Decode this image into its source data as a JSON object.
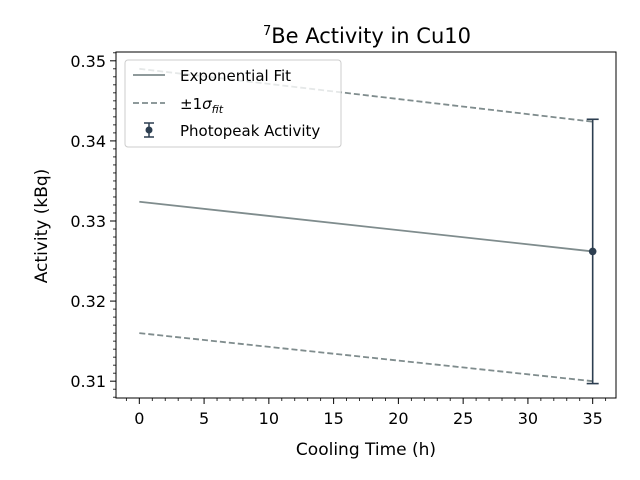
{
  "chart_data": {
    "type": "line",
    "title": "Be Activity in Cu10",
    "title_superscript": "7",
    "xlabel": "Cooling Time (h)",
    "ylabel": "Activity (kBq)",
    "xlim": [
      -1.8,
      36.8
    ],
    "ylim": [
      0.3079,
      0.3511
    ],
    "xticks": [
      0,
      5,
      10,
      15,
      20,
      25,
      30,
      35
    ],
    "yticks": [
      0.31,
      0.32,
      0.33,
      0.34,
      0.35
    ],
    "x_tick_labels": [
      "0",
      "5",
      "10",
      "15",
      "20",
      "25",
      "30",
      "35"
    ],
    "y_tick_labels": [
      "0.31",
      "0.32",
      "0.33",
      "0.34",
      "0.35"
    ],
    "grid": false,
    "legend_position": "top-left",
    "legend": {
      "fit_label": "Exponential Fit",
      "sigma_prefix": "±1",
      "sigma_symbol": "σ",
      "sigma_subscript": "fit",
      "data_label": "Photopeak Activity"
    },
    "series": [
      {
        "name": "Exponential Fit",
        "style": "solid",
        "color": "#7f8c8d",
        "x": [
          0,
          35
        ],
        "y": [
          0.3324,
          0.3262
        ]
      },
      {
        "name": "±1σfit",
        "role": "upper",
        "style": "dashed",
        "color": "#7f8c8d",
        "x": [
          0,
          35
        ],
        "y": [
          0.349,
          0.3424
        ]
      },
      {
        "name": "±1σfit",
        "role": "lower",
        "style": "dashed",
        "color": "#7f8c8d",
        "x": [
          0,
          35
        ],
        "y": [
          0.316,
          0.31
        ]
      },
      {
        "name": "Photopeak Activity",
        "style": "errorbar",
        "color": "#2c3e50",
        "x": [
          35
        ],
        "y": [
          0.3262
        ],
        "yerr": [
          0.0165
        ]
      }
    ]
  }
}
